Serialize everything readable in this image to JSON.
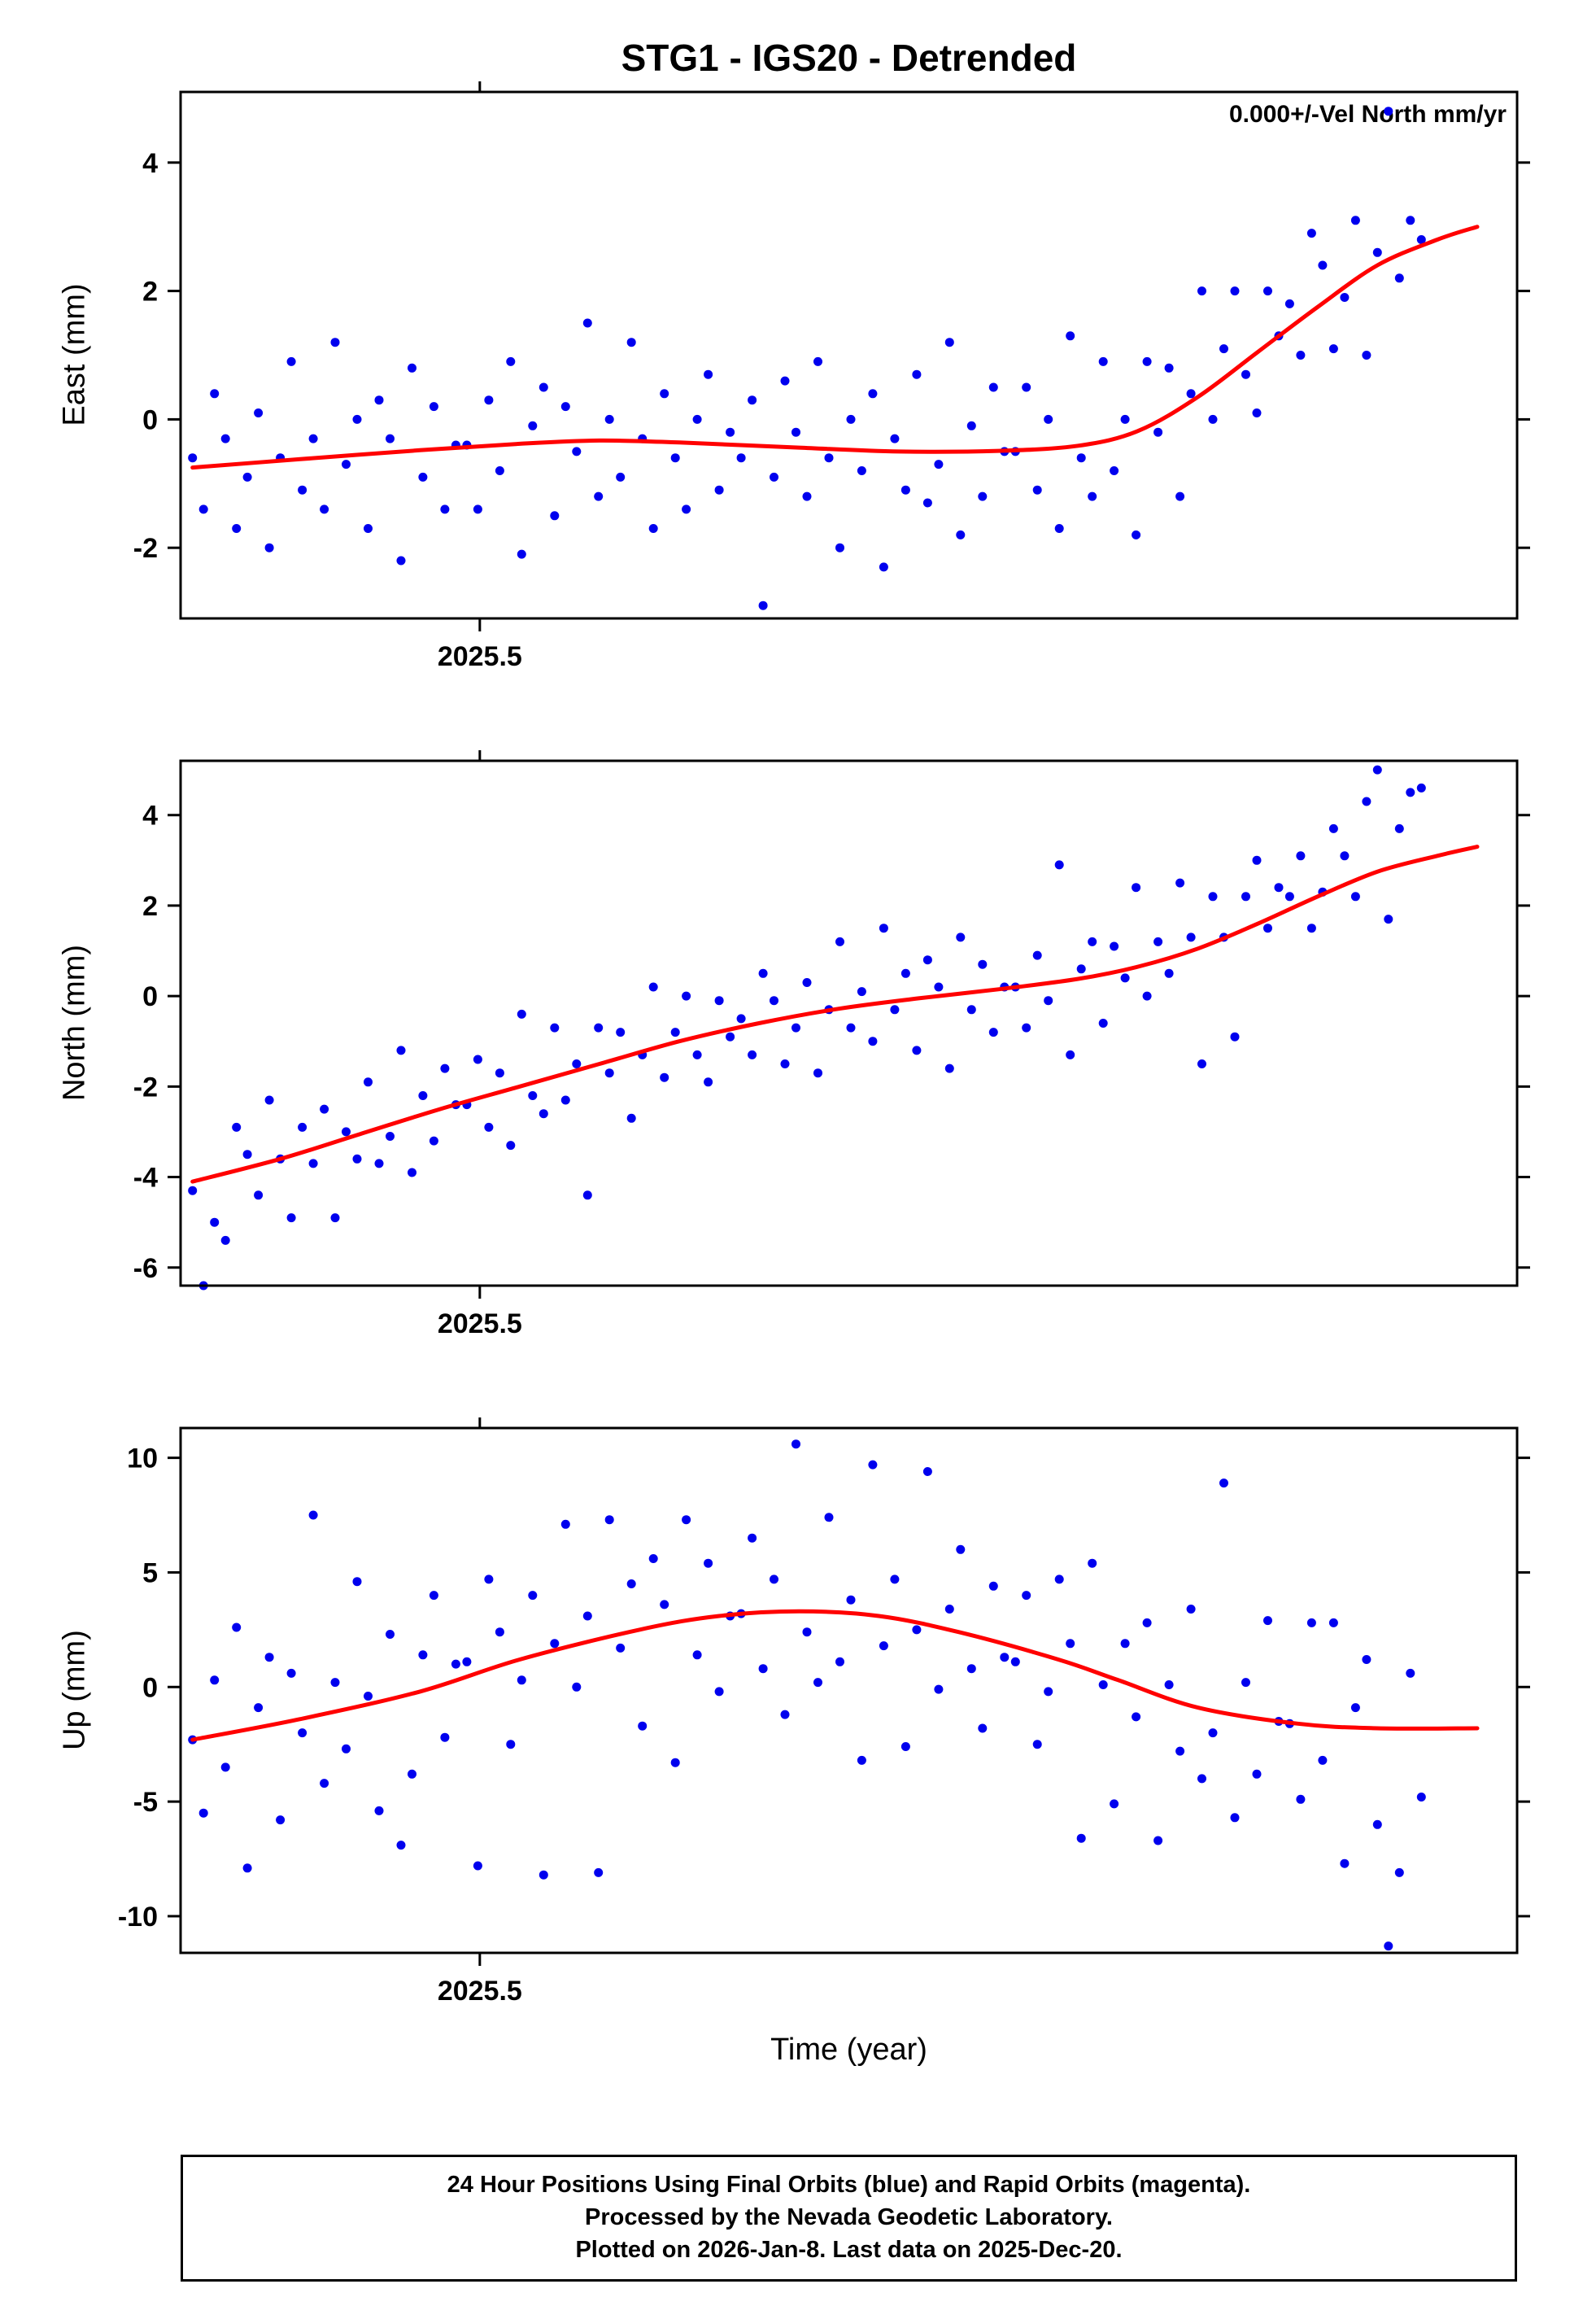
{
  "chart_data": {
    "type": "scatter",
    "title": "STG1 - IGS20 - Detrended",
    "xlabel": "Time (year)",
    "x_start": 2025.356,
    "x_step": 0.0055,
    "xlim": [
      2025.35,
      2026.02
    ],
    "xticks": [
      {
        "value": 2025.5,
        "label": "2025.5"
      }
    ],
    "point_color": "#0000ee",
    "trend_color": "#ff0000",
    "legend_position": "none",
    "grid": false,
    "panels": [
      {
        "ylabel": "East (mm)",
        "ylim": [
          -3.1,
          5.1
        ],
        "yticks": [
          -2,
          0,
          2,
          4
        ],
        "annotation": "0.000+/-Vel North mm/yr",
        "scatter_y": [
          -0.6,
          -1.4,
          0.4,
          -0.3,
          -1.7,
          -0.9,
          0.1,
          -2.0,
          -0.6,
          0.9,
          -1.1,
          -0.3,
          -1.4,
          1.2,
          -0.7,
          0.0,
          -1.7,
          0.3,
          -0.3,
          -2.2,
          0.8,
          -0.9,
          0.2,
          -1.4,
          -0.4,
          -0.4,
          -1.4,
          0.3,
          -0.8,
          0.9,
          -2.1,
          -0.1,
          0.5,
          -1.5,
          0.2,
          -0.5,
          1.5,
          -1.2,
          0.0,
          -0.9,
          1.2,
          -0.3,
          -1.7,
          0.4,
          -0.6,
          -1.4,
          0.0,
          0.7,
          -1.1,
          -0.2,
          -0.6,
          0.3,
          -2.9,
          -0.9,
          0.6,
          -0.2,
          -1.2,
          0.9,
          -0.6,
          -2.0,
          0.0,
          -0.8,
          0.4,
          -2.3,
          -0.3,
          -1.1,
          0.7,
          -1.3,
          -0.7,
          1.2,
          -1.8,
          -0.1,
          -1.2,
          0.5,
          -0.5,
          -0.5,
          0.5,
          -1.1,
          0.0,
          -1.7,
          1.3,
          -0.6,
          -1.2,
          0.9,
          -0.8,
          0.0,
          -1.8,
          0.9,
          -0.2,
          0.8,
          -1.2,
          0.4,
          2.0,
          0.0,
          1.1,
          2.0,
          0.7,
          0.1,
          2.0,
          1.3,
          1.8,
          1.0,
          2.9,
          2.4,
          1.1,
          1.9,
          3.1,
          1.0,
          2.6,
          4.8,
          2.2,
          3.1,
          2.8
        ],
        "trend": [
          [
            2025.356,
            -0.75
          ],
          [
            2025.41,
            -0.62
          ],
          [
            2025.47,
            -0.48
          ],
          [
            2025.52,
            -0.38
          ],
          [
            2025.56,
            -0.33
          ],
          [
            2025.6,
            -0.36
          ],
          [
            2025.66,
            -0.44
          ],
          [
            2025.71,
            -0.5
          ],
          [
            2025.76,
            -0.49
          ],
          [
            2025.8,
            -0.41
          ],
          [
            2025.83,
            -0.18
          ],
          [
            2025.86,
            0.35
          ],
          [
            2025.89,
            1.05
          ],
          [
            2025.92,
            1.75
          ],
          [
            2025.95,
            2.4
          ],
          [
            2025.98,
            2.8
          ],
          [
            2026.0,
            3.0
          ]
        ]
      },
      {
        "ylabel": "North (mm)",
        "ylim": [
          -6.4,
          5.2
        ],
        "yticks": [
          -6,
          -4,
          -2,
          0,
          2,
          4
        ],
        "annotation": "",
        "scatter_y": [
          -4.3,
          -6.4,
          -5.0,
          -5.4,
          -2.9,
          -3.5,
          -4.4,
          -2.3,
          -3.6,
          -4.9,
          -2.9,
          -3.7,
          -2.5,
          -4.9,
          -3.0,
          -3.6,
          -1.9,
          -3.7,
          -3.1,
          -1.2,
          -3.9,
          -2.2,
          -3.2,
          -1.6,
          -2.4,
          -2.4,
          -1.4,
          -2.9,
          -1.7,
          -3.3,
          -0.4,
          -2.2,
          -2.6,
          -0.7,
          -2.3,
          -1.5,
          -4.4,
          -0.7,
          -1.7,
          -0.8,
          -2.7,
          -1.3,
          0.2,
          -1.8,
          -0.8,
          0.0,
          -1.3,
          -1.9,
          -0.1,
          -0.9,
          -0.5,
          -1.3,
          0.5,
          -0.1,
          -1.5,
          -0.7,
          0.3,
          -1.7,
          -0.3,
          1.2,
          -0.7,
          0.1,
          -1.0,
          1.5,
          -0.3,
          0.5,
          -1.2,
          0.8,
          0.2,
          -1.6,
          1.3,
          -0.3,
          0.7,
          -0.8,
          0.2,
          0.2,
          -0.7,
          0.9,
          -0.1,
          2.9,
          -1.3,
          0.6,
          1.2,
          -0.6,
          1.1,
          0.4,
          2.4,
          0.0,
          1.2,
          0.5,
          2.5,
          1.3,
          -1.5,
          2.2,
          1.3,
          -0.9,
          2.2,
          3.0,
          1.5,
          2.4,
          2.2,
          3.1,
          1.5,
          2.3,
          3.7,
          3.1,
          2.2,
          4.3,
          5.0,
          1.7,
          3.7,
          4.5,
          4.6
        ],
        "trend": [
          [
            2025.356,
            -4.1
          ],
          [
            2025.4,
            -3.6
          ],
          [
            2025.44,
            -3.05
          ],
          [
            2025.48,
            -2.5
          ],
          [
            2025.52,
            -2.0
          ],
          [
            2025.56,
            -1.5
          ],
          [
            2025.6,
            -1.0
          ],
          [
            2025.64,
            -0.6
          ],
          [
            2025.68,
            -0.28
          ],
          [
            2025.72,
            -0.05
          ],
          [
            2025.76,
            0.15
          ],
          [
            2025.8,
            0.38
          ],
          [
            2025.83,
            0.65
          ],
          [
            2025.86,
            1.05
          ],
          [
            2025.89,
            1.6
          ],
          [
            2025.92,
            2.2
          ],
          [
            2025.95,
            2.75
          ],
          [
            2025.98,
            3.1
          ],
          [
            2026.0,
            3.3
          ]
        ]
      },
      {
        "ylabel": "Up (mm)",
        "ylim": [
          -11.6,
          11.3
        ],
        "yticks": [
          -10,
          -5,
          0,
          5,
          10
        ],
        "annotation": "",
        "scatter_y": [
          -2.3,
          -5.5,
          0.3,
          -3.5,
          2.6,
          -7.9,
          -0.9,
          1.3,
          -5.8,
          0.6,
          -2.0,
          7.5,
          -4.2,
          0.2,
          -2.7,
          4.6,
          -0.4,
          -5.4,
          2.3,
          -6.9,
          -3.8,
          1.4,
          4.0,
          -2.2,
          1.0,
          1.1,
          -7.8,
          4.7,
          2.4,
          -2.5,
          0.3,
          4.0,
          -8.2,
          1.9,
          7.1,
          0.0,
          3.1,
          -8.1,
          7.3,
          1.7,
          4.5,
          -1.7,
          5.6,
          3.6,
          -3.3,
          7.3,
          1.4,
          5.4,
          -0.2,
          3.1,
          3.2,
          6.5,
          0.8,
          4.7,
          -1.2,
          10.6,
          2.4,
          0.2,
          7.4,
          1.1,
          3.8,
          -3.2,
          9.7,
          1.8,
          4.7,
          -2.6,
          2.5,
          9.4,
          -0.1,
          3.4,
          6.0,
          0.8,
          -1.8,
          4.4,
          1.3,
          1.1,
          4.0,
          -2.5,
          -0.2,
          4.7,
          1.9,
          -6.6,
          5.4,
          0.1,
          -5.1,
          1.9,
          -1.3,
          2.8,
          -6.7,
          0.1,
          -2.8,
          3.4,
          -4.0,
          -2.0,
          8.9,
          -5.7,
          0.2,
          -3.8,
          2.9,
          -1.5,
          -1.6,
          -4.9,
          2.8,
          -3.2,
          2.8,
          -7.7,
          -0.9,
          1.2,
          -6.0,
          -11.3,
          -8.1,
          0.6,
          -4.8
        ],
        "trend": [
          [
            2025.356,
            -2.3
          ],
          [
            2025.41,
            -1.4
          ],
          [
            2025.47,
            -0.2
          ],
          [
            2025.52,
            1.2
          ],
          [
            2025.58,
            2.5
          ],
          [
            2025.62,
            3.1
          ],
          [
            2025.66,
            3.3
          ],
          [
            2025.7,
            3.1
          ],
          [
            2025.74,
            2.4
          ],
          [
            2025.79,
            1.2
          ],
          [
            2025.82,
            0.3
          ],
          [
            2025.86,
            -0.9
          ],
          [
            2025.91,
            -1.6
          ],
          [
            2025.95,
            -1.8
          ],
          [
            2026.0,
            -1.8
          ]
        ]
      }
    ]
  },
  "footer": {
    "line1": "24 Hour Positions Using Final Orbits (blue) and Rapid Orbits (magenta).",
    "line2": "Processed by the Nevada Geodetic Laboratory.",
    "line3": "Plotted on 2026-Jan-8. Last data on 2025-Dec-20."
  }
}
